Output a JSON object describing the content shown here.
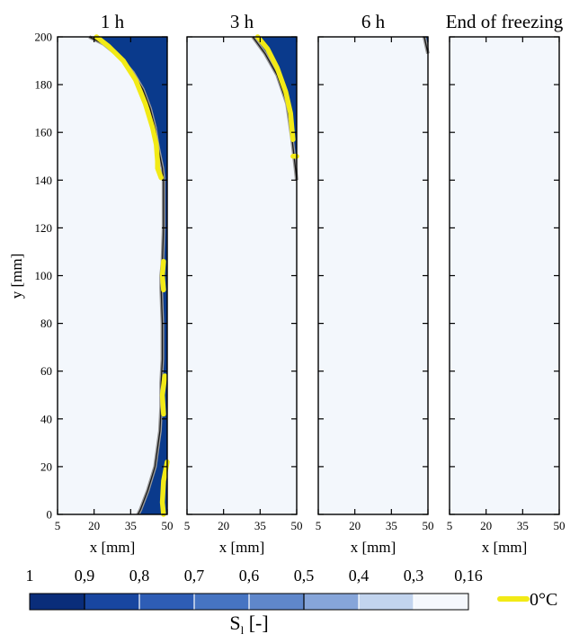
{
  "chart_data": {
    "type": "heatmap",
    "panels": [
      {
        "title": "1 h",
        "xlabel": "x [mm]"
      },
      {
        "title": "3 h",
        "xlabel": "x [mm]"
      },
      {
        "title": "6 h",
        "xlabel": "x [mm]"
      },
      {
        "title": "End of freezing",
        "xlabel": "x [mm]"
      }
    ],
    "ylabel": "y [mm]",
    "xlim": [
      5,
      50
    ],
    "ylim": [
      0,
      200
    ],
    "x_ticks": [
      5,
      20,
      35,
      50
    ],
    "x_tick_labels": [
      "5",
      "20",
      "35",
      "50"
    ],
    "y_ticks": [
      0,
      20,
      40,
      60,
      80,
      100,
      120,
      140,
      160,
      180,
      200
    ],
    "y_tick_labels": [
      "0",
      "20",
      "40",
      "60",
      "80",
      "100",
      "120",
      "140",
      "160",
      "180",
      "200"
    ],
    "colorbar": {
      "label_main": "S",
      "label_sub": "l",
      "label_unit": " [-]",
      "tick_labels": [
        "1",
        "0,9",
        "0,8",
        "0,7",
        "0,6",
        "0,5",
        "0,4",
        "0,3",
        "0,16"
      ],
      "colors": [
        "#0a2d7a",
        "#1846a0",
        "#2e5db5",
        "#4674c2",
        "#5f87cb",
        "#86a5d9",
        "#c2d4ee",
        "#f5f8fd"
      ]
    },
    "isotherm_label": "0°C",
    "isotherm_color": "#f2ea16",
    "frozen_color": "#0a3a8c",
    "unfrozen_color": "#f3f7fc",
    "frozen_front": [
      [
        {
          "x": [
            18,
            24,
            30,
            36,
            40,
            43,
            45,
            46,
            47,
            48,
            48.5,
            48.5,
            48,
            47.5,
            47.5,
            48,
            48,
            47.5,
            47.5,
            47.5,
            47,
            45,
            42,
            39,
            38
          ],
          "y": [
            200,
            197,
            192,
            185,
            178,
            170,
            162,
            155,
            150,
            145,
            140,
            120,
            105,
            100,
            95,
            80,
            65,
            55,
            50,
            45,
            35,
            20,
            10,
            2,
            0
          ]
        }
      ],
      [
        {
          "x": [
            32,
            37,
            42,
            46,
            48,
            49.5,
            50
          ],
          "y": [
            200,
            193,
            184,
            172,
            158,
            145,
            140
          ]
        }
      ],
      [
        {
          "x": [
            48.5,
            50
          ],
          "y": [
            200,
            193
          ]
        }
      ],
      []
    ],
    "isotherm_0C": [
      [
        {
          "x": [
            21,
            26,
            32,
            37,
            41,
            44,
            45.5,
            46,
            46,
            47.5
          ],
          "y": [
            200,
            196,
            190,
            182,
            172,
            162,
            155,
            148,
            145,
            141
          ]
        },
        {
          "x": [
            48.5,
            48,
            48.5
          ],
          "y": [
            106,
            100,
            94
          ]
        },
        {
          "x": [
            49,
            48,
            48.5
          ],
          "y": [
            58,
            50,
            42
          ]
        },
        {
          "x": [
            50,
            48.5,
            48,
            48.5
          ],
          "y": [
            22,
            14,
            5,
            0
          ]
        }
      ],
      [
        {
          "x": [
            34,
            38,
            42,
            45.5,
            47.5,
            48,
            48.5
          ],
          "y": [
            200,
            195,
            187,
            177,
            168,
            162,
            157
          ]
        },
        {
          "x": [
            48.5,
            50
          ],
          "y": [
            150,
            150
          ]
        }
      ],
      [],
      []
    ]
  }
}
